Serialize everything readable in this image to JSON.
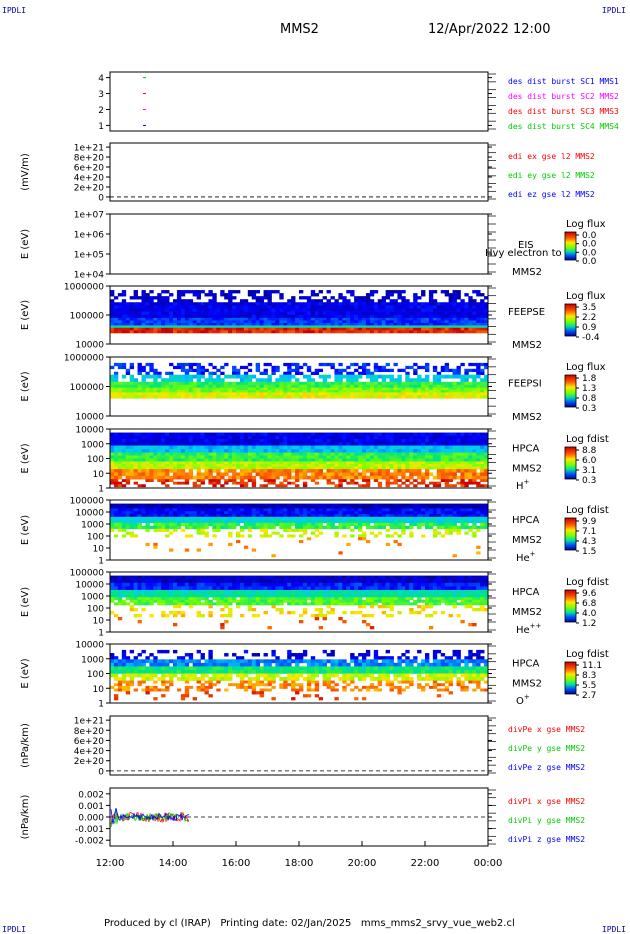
{
  "corner_tags": {
    "tl": "IPDLI",
    "tr": "IPDLI",
    "bl": "IPDLI",
    "br": "IPDLI"
  },
  "header": {
    "spacecraft": "MMS2",
    "datetime": "12/Apr/2022 12:00"
  },
  "footer": {
    "text": "Produced by cl (IRAP)   Printing date: 02/Jan/2025   mms_mms2_srvy_vue_web2.cl"
  },
  "chart_data": {
    "type": "multi-panel time series / spectrogram",
    "x_range": [
      "12:00",
      "00:00"
    ],
    "x_ticks": [
      "12:00",
      "14:00",
      "16:00",
      "18:00",
      "20:00",
      "22:00",
      "00:00"
    ],
    "colors": {
      "mms1": "#0000ff",
      "mms2": "#ff00ff",
      "mms3": "#ff0000",
      "mms4": "#00cc00",
      "x": "#ff0000",
      "y": "#00cc00",
      "z": "#0000ff"
    },
    "panels": [
      {
        "id": "burst",
        "ylabel": "",
        "yticks": [
          "4",
          "3",
          "2",
          "1"
        ],
        "legend": [
          {
            "text": "des dist burst SC1 MMS1",
            "color": "#0000ff"
          },
          {
            "text": "des dist burst SC2 MMS2",
            "color": "#ff00ff"
          },
          {
            "text": "des dist burst SC3 MMS3",
            "color": "#ff0000"
          },
          {
            "text": "des dist burst SC4 MMS4",
            "color": "#00cc00"
          }
        ]
      },
      {
        "id": "edi",
        "ylabel": "(mV/m)",
        "yticks": [
          "1e+21",
          "8e+20",
          "6e+20",
          "4e+20",
          "2e+20",
          "0"
        ],
        "legend": [
          {
            "text": "edi ex gse l2 MMS2",
            "color": "#ff0000"
          },
          {
            "text": "edi ey gse l2 MMS2",
            "color": "#00cc00"
          },
          {
            "text": "edi ez gse l2 MMS2",
            "color": "#0000ff"
          }
        ]
      },
      {
        "id": "eis",
        "ylabel": "E (eV)",
        "yticks": [
          "1e+07",
          "1e+06",
          "1e+05",
          "1e+04"
        ],
        "right_labels": [
          "EIS",
          "Hvy electron to",
          "MMS2"
        ],
        "cbar_title": "Log flux",
        "cbar_ticks": [
          "0.0",
          "0.0",
          "0.0",
          "0.0"
        ]
      },
      {
        "id": "feepse",
        "ylabel": "E (eV)",
        "yticks": [
          "1000000",
          "100000",
          "10000"
        ],
        "right_labels": [
          "FEEPSE",
          "MMS2"
        ],
        "cbar_title": "Log flux",
        "cbar_ticks": [
          "3.5",
          "2.2",
          "0.9",
          "-0.4"
        ]
      },
      {
        "id": "feepsi",
        "ylabel": "E (eV)",
        "yticks": [
          "1000000",
          "100000",
          "10000"
        ],
        "right_labels": [
          "FEEPSI",
          "MMS2"
        ],
        "cbar_title": "Log flux",
        "cbar_ticks": [
          "1.8",
          "1.3",
          "0.8",
          "0.3"
        ]
      },
      {
        "id": "hpca_h",
        "ylabel": "E (eV)",
        "yticks": [
          "10000",
          "1000",
          "100",
          "10",
          "1"
        ],
        "right_labels": [
          "HPCA",
          "MMS2",
          "H+"
        ],
        "cbar_title": "Log fdist",
        "cbar_ticks": [
          "8.8",
          "6.0",
          "3.1",
          "0.3"
        ]
      },
      {
        "id": "hpca_he",
        "ylabel": "E (eV)",
        "yticks": [
          "100000",
          "10000",
          "1000",
          "100",
          "10",
          "1"
        ],
        "right_labels": [
          "HPCA",
          "MMS2",
          "He+"
        ],
        "cbar_title": "Log fdist",
        "cbar_ticks": [
          "9.9",
          "7.1",
          "4.3",
          "1.5"
        ]
      },
      {
        "id": "hpca_hepp",
        "ylabel": "E (eV)",
        "yticks": [
          "100000",
          "10000",
          "1000",
          "100",
          "10",
          "1"
        ],
        "right_labels": [
          "HPCA",
          "MMS2",
          "He++"
        ],
        "cbar_title": "Log fdist",
        "cbar_ticks": [
          "9.6",
          "6.8",
          "4.0",
          "1.2"
        ]
      },
      {
        "id": "hpca_o",
        "ylabel": "E (eV)",
        "yticks": [
          "10000",
          "1000",
          "100",
          "10",
          "1"
        ],
        "right_labels": [
          "HPCA",
          "MMS2",
          "O+"
        ],
        "cbar_title": "Log fdist",
        "cbar_ticks": [
          "11.1",
          "8.3",
          "5.5",
          "2.7"
        ]
      },
      {
        "id": "divpe",
        "ylabel": "(nPa/km)",
        "yticks": [
          "1e+21",
          "8e+20",
          "6e+20",
          "4e+20",
          "2e+20",
          "0"
        ],
        "legend": [
          {
            "text": "divPe x gse MMS2",
            "color": "#ff0000"
          },
          {
            "text": "divPe y gse MMS2",
            "color": "#00cc00"
          },
          {
            "text": "divPe z gse MMS2",
            "color": "#0000ff"
          }
        ]
      },
      {
        "id": "divpi",
        "ylabel": "(nPa/km)",
        "yticks": [
          "0.002",
          "0.001",
          "0.000",
          "-0.001",
          "-0.002"
        ],
        "legend": [
          {
            "text": "divPi x gse MMS2",
            "color": "#ff0000"
          },
          {
            "text": "divPi y gse MMS2",
            "color": "#00cc00"
          },
          {
            "text": "divPi z gse MMS2",
            "color": "#0000ff"
          }
        ]
      }
    ]
  }
}
